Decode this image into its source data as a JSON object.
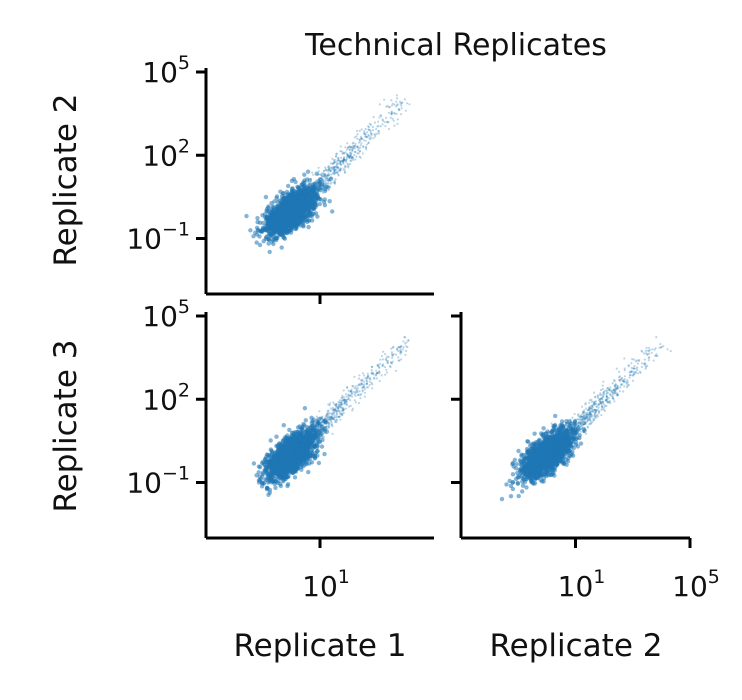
{
  "figure": {
    "title": "Technical Replicates",
    "row_labels": [
      "Replicate 2",
      "Replicate 3"
    ],
    "col_labels": [
      "Replicate 1",
      "Replicate 2"
    ],
    "point_color": "#1f77b4",
    "axis_color": "#000000"
  },
  "chart_data": [
    {
      "type": "scatter",
      "x_name": "Replicate 1",
      "y_name": "Replicate 2",
      "scale": "log10",
      "xlim": [
        0.001,
        100000
      ],
      "ylim": [
        0.001,
        100000
      ],
      "yticks": [
        {
          "value": 0.1,
          "label": "10^-1"
        },
        {
          "value": 100,
          "label": "10^2"
        },
        {
          "value": 100000,
          "label": "10^5"
        }
      ],
      "xticks": [
        {
          "value": 10,
          "label": "10^1"
        }
      ],
      "cluster": {
        "center": 1,
        "spread_log10": 0.45,
        "trend": "y = x",
        "max": 10000,
        "n_points": 2500
      }
    },
    {
      "type": "scatter",
      "x_name": "Replicate 1",
      "y_name": "Replicate 3",
      "scale": "log10",
      "xlim": [
        0.001,
        100000
      ],
      "ylim": [
        0.001,
        100000
      ],
      "yticks": [
        {
          "value": 0.1,
          "label": "10^-1"
        },
        {
          "value": 100,
          "label": "10^2"
        },
        {
          "value": 100000,
          "label": "10^5"
        }
      ],
      "xticks": [
        {
          "value": 10,
          "label": "10^1"
        }
      ],
      "cluster": {
        "center": 1,
        "spread_log10": 0.45,
        "trend": "y = x",
        "max": 10000,
        "n_points": 2500
      }
    },
    {
      "type": "scatter",
      "x_name": "Replicate 2",
      "y_name": "Replicate 3",
      "scale": "log10",
      "xlim": [
        0.001,
        100000
      ],
      "ylim": [
        0.001,
        100000
      ],
      "yticks": [
        {
          "value": 0.1,
          "label": "10^-1"
        },
        {
          "value": 100,
          "label": "10^2"
        },
        {
          "value": 100000,
          "label": "10^5"
        }
      ],
      "xticks": [
        {
          "value": 10,
          "label": "10^1"
        },
        {
          "value": 100000,
          "label": "10^5"
        }
      ],
      "cluster": {
        "center": 1,
        "spread_log10": 0.45,
        "trend": "y = x",
        "max": 10000,
        "n_points": 2500
      }
    }
  ]
}
